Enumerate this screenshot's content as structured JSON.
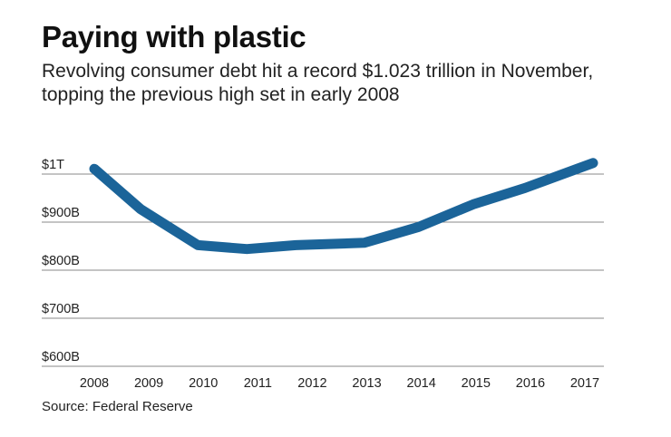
{
  "title": "Paying with plastic",
  "subtitle": "Revolving consumer debt hit a record $1.023 trillion in November, topping the previous high set in early 2008",
  "source": "Source: Federal Reserve",
  "colors": {
    "line": "#1b6499",
    "gridline": "#888888",
    "text": "#111111"
  },
  "chart_data": {
    "type": "line",
    "title": "Paying with plastic",
    "xlabel": "",
    "ylabel": "",
    "x": [
      "2008",
      "2009",
      "2010",
      "2011",
      "2012",
      "2013",
      "2014",
      "2015",
      "2016",
      "2017"
    ],
    "series": [
      {
        "name": "Revolving consumer debt",
        "x": [
          2008.0,
          2008.85,
          2009.9,
          2010.8,
          2011.7,
          2012.95,
          2013.95,
          2014.95,
          2015.9,
          2017.15
        ],
        "values": [
          1011,
          927,
          852,
          844,
          852,
          857,
          890,
          937,
          971,
          1023
        ]
      }
    ],
    "xlim": [
      2008,
      2017
    ],
    "ylim": [
      600,
      1000
    ],
    "yticks": [
      600,
      700,
      800,
      900,
      1000
    ],
    "ytick_labels": [
      "$600B",
      "$700B",
      "$800B",
      "$900B",
      "$1T"
    ],
    "grid": true
  }
}
